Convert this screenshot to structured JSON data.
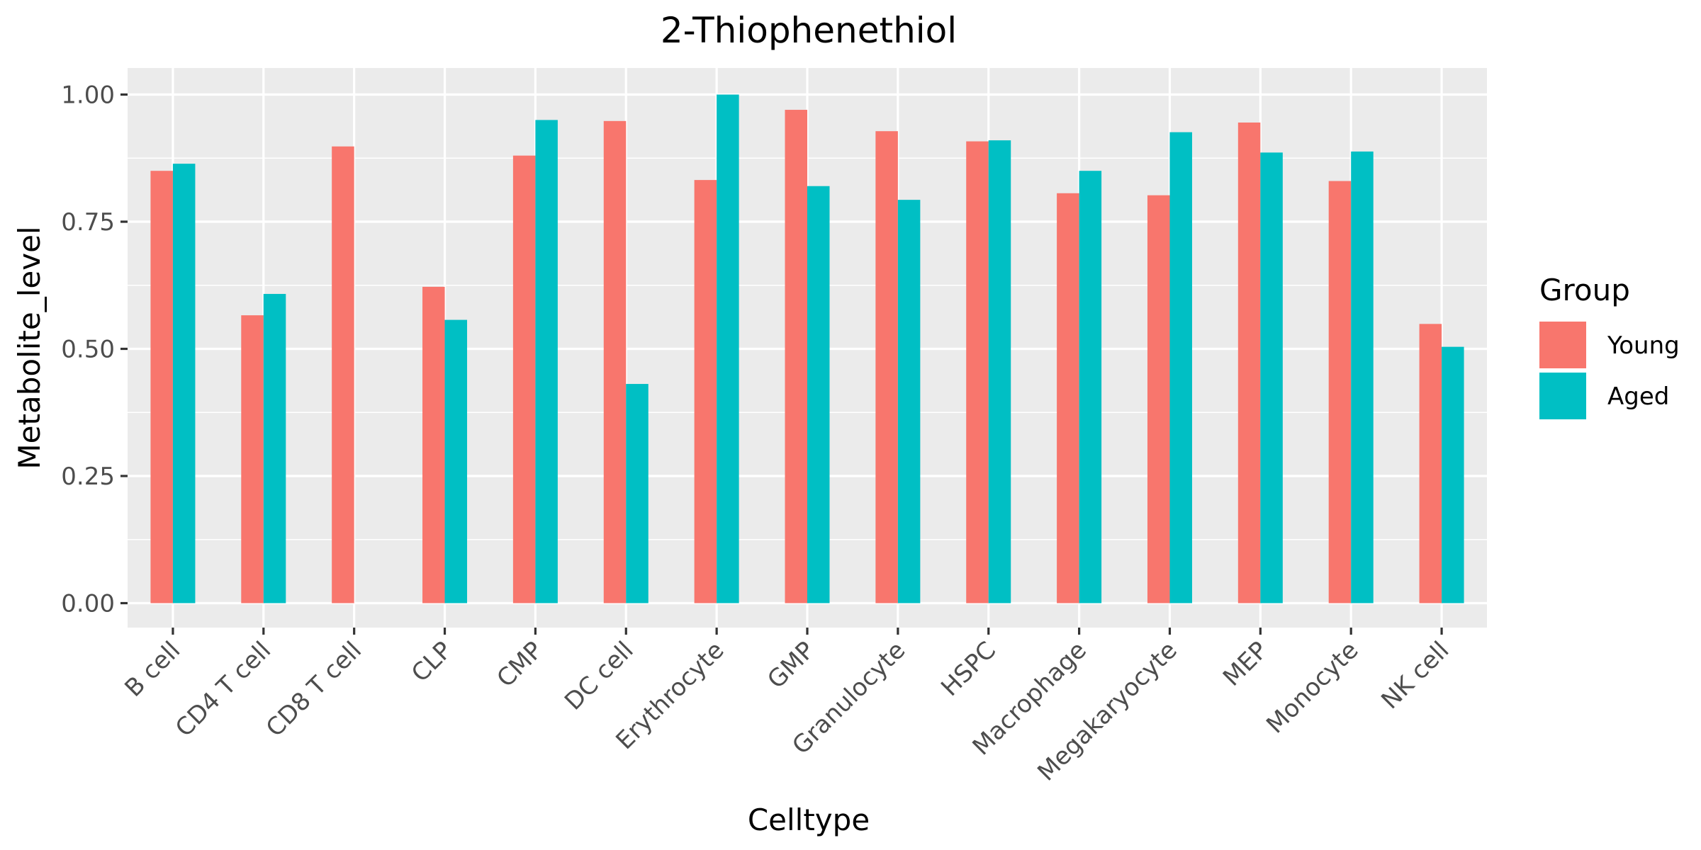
{
  "chart_data": {
    "type": "bar",
    "title": "2-Thiophenethiol",
    "xlabel": "Celltype",
    "ylabel": "Metabolite_level",
    "ylim": [
      0,
      1.05
    ],
    "yticks": [
      0.0,
      0.25,
      0.5,
      0.75,
      1.0
    ],
    "ytick_labels": [
      "0.00",
      "0.25",
      "0.50",
      "0.75",
      "1.00"
    ],
    "grid": true,
    "legend": {
      "title": "Group",
      "placement": "right"
    },
    "categories": [
      "B cell",
      "CD4 T cell",
      "CD8 T cell",
      "CLP",
      "CMP",
      "DC cell",
      "Erythrocyte",
      "GMP",
      "Granulocyte",
      "HSPC",
      "Macrophage",
      "Megakaryocyte",
      "MEP",
      "Monocyte",
      "NK cell"
    ],
    "series": [
      {
        "name": "Young",
        "color": "#F8766D",
        "values": [
          0.85,
          0.566,
          0.898,
          0.622,
          0.88,
          0.948,
          0.832,
          0.97,
          0.928,
          0.908,
          0.806,
          0.802,
          0.945,
          0.83,
          0.549
        ]
      },
      {
        "name": "Aged",
        "color": "#00BFC4",
        "values": [
          0.864,
          0.608,
          null,
          0.557,
          0.95,
          0.431,
          1.0,
          0.82,
          0.793,
          0.91,
          0.85,
          0.926,
          0.886,
          0.888,
          0.504
        ]
      }
    ]
  }
}
